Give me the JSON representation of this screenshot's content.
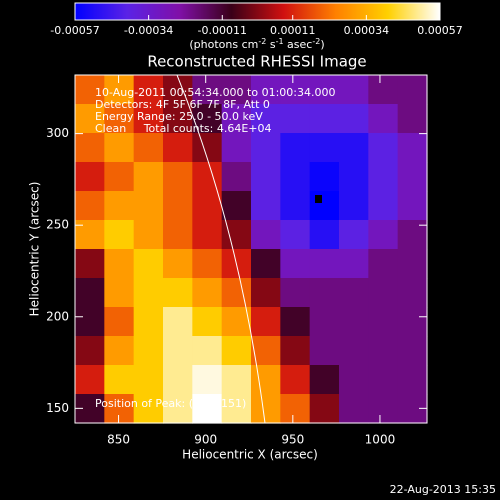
{
  "chart_data": {
    "type": "heatmap",
    "title": "Reconstructed RHESSI Image",
    "x_label": "Heliocentric X (arcsec)",
    "y_label": "Heliocentric Y (arcsec)",
    "colorbar_label": [
      "(photons cm",
      "-2",
      " s",
      "-1",
      " asec",
      "-2",
      ")"
    ],
    "annotations": [
      "10-Aug-2011 00:54:34.000 to 01:00:34.000",
      "Detectors: 4F 5F 6F 7F 8F, Att 0",
      "Energy Range: 25.0 - 50.0 keV",
      "Clean     Total counts: 4.64E+04"
    ],
    "peak_label": "Position of Peak: (843, 151)",
    "footer": "22-Aug-2013 15:35",
    "xlim": [
      825,
      1027
    ],
    "ylim": [
      142,
      332
    ],
    "xticks": [
      850,
      900,
      950,
      1000
    ],
    "yticks": [
      150,
      200,
      250,
      300
    ],
    "clim": [
      -0.00057,
      0.00057
    ],
    "cticks": [
      -0.00057,
      -0.00034,
      -0.00011,
      0.00011,
      0.00034,
      0.00057
    ],
    "colormap": [
      "#0000ff",
      "#5a22e6",
      "#8010a8",
      "#3a0018",
      "#d01010",
      "#ff8000",
      "#ffd000",
      "#ffffff"
    ],
    "z": [
      [
        0.0002,
        0.0003,
        0.0001,
        0,
        -0.0002,
        -0.0002,
        -0.0003,
        -0.0003,
        -0.0003,
        -0.0003,
        -0.0002,
        -0.0002
      ],
      [
        0.0003,
        0.0002,
        0.0001,
        0,
        -0.0001,
        -0.0003,
        -0.0004,
        -0.0004,
        -0.0004,
        -0.0004,
        -0.0003,
        -0.0002
      ],
      [
        0.0002,
        0.0003,
        0.0002,
        0.0001,
        0,
        -0.0003,
        -0.0004,
        -0.0005,
        -0.0005,
        -0.0005,
        -0.0004,
        -0.0003
      ],
      [
        0.0001,
        0.0002,
        0.0003,
        0.0002,
        0.0001,
        -0.0002,
        -0.0004,
        -0.0005,
        -0.00055,
        -0.0005,
        -0.0004,
        -0.0003
      ],
      [
        0.0002,
        0.0003,
        0.0003,
        0.0002,
        0.0001,
        -0.0001,
        -0.0004,
        -0.0005,
        -0.00057,
        -0.0005,
        -0.0004,
        -0.0003
      ],
      [
        0.0003,
        0.0004,
        0.0003,
        0.0002,
        0.0001,
        0,
        -0.0003,
        -0.0004,
        -0.0005,
        -0.0004,
        -0.0003,
        -0.0002
      ],
      [
        0,
        0.0003,
        0.0004,
        0.0003,
        0.0002,
        0.0001,
        -0.0001,
        -0.0003,
        -0.0003,
        -0.0003,
        -0.0002,
        -0.0002
      ],
      [
        -0.0001,
        0.0003,
        0.0004,
        0.0004,
        0.0003,
        0.0002,
        0,
        -0.0002,
        -0.0002,
        -0.0002,
        -0.0002,
        -0.0002
      ],
      [
        -0.0001,
        0.0002,
        0.0004,
        0.0005,
        0.0004,
        0.0003,
        0.0001,
        -0.0001,
        -0.0002,
        -0.0002,
        -0.0002,
        -0.0002
      ],
      [
        0,
        0.0003,
        0.0004,
        0.0005,
        0.0005,
        0.0004,
        0.0002,
        0,
        -0.0002,
        -0.0002,
        -0.0002,
        -0.0002
      ],
      [
        0.0001,
        0.0004,
        0.0004,
        0.0005,
        0.00055,
        0.0005,
        0.0003,
        0.0001,
        -0.0001,
        -0.0002,
        -0.0002,
        -0.0002
      ],
      [
        -0.0001,
        0.0002,
        0.0004,
        0.0005,
        0.00057,
        0.0005,
        0.0003,
        0.0002,
        0,
        -0.0002,
        -0.0002,
        -0.0002
      ]
    ]
  }
}
